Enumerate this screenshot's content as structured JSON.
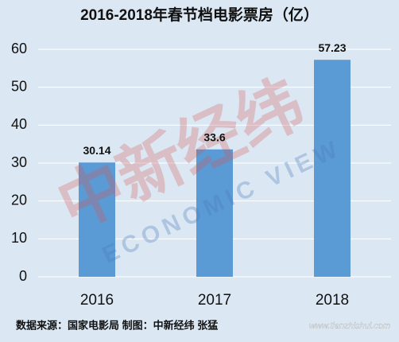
{
  "chart_data": {
    "type": "bar",
    "title": "2016-2018年春节档电影票房（亿）",
    "categories": [
      "2016",
      "2017",
      "2018"
    ],
    "values": [
      30.14,
      33.6,
      57.23
    ],
    "color": "#5b9bd5",
    "ylim": [
      0,
      60
    ],
    "yticks": [
      0,
      10,
      20,
      30,
      40,
      50,
      60
    ],
    "grid": true,
    "source": "数据来源：国家电影局 制图：中新经纬 张猛",
    "watermarks": [
      "中新经纬",
      "ECONOMIC VIEW",
      "www.tianzhishui.com"
    ]
  }
}
